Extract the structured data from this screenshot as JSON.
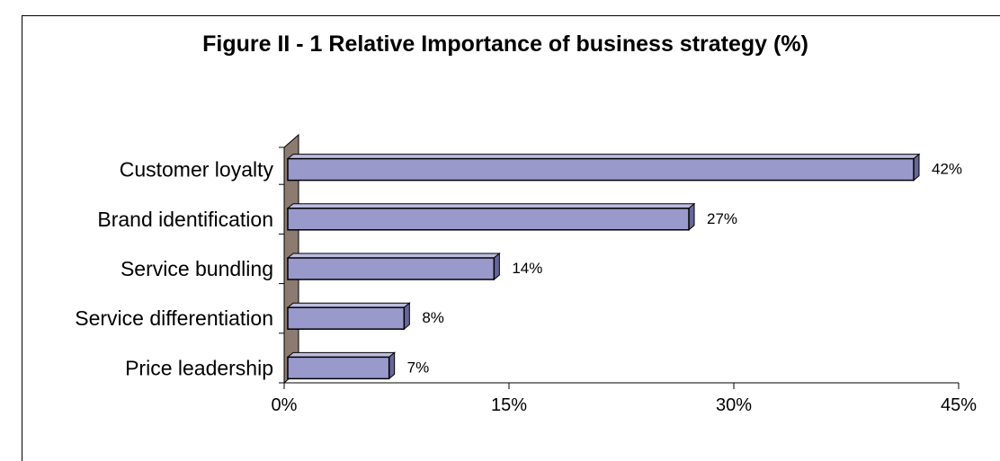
{
  "chart_data": {
    "type": "bar",
    "orientation": "horizontal",
    "title": "Figure II - 1 Relative Importance of business strategy (%)",
    "categories": [
      "Customer loyalty",
      "Brand identification",
      "Service bundling",
      "Service differentiation",
      "Price leadership"
    ],
    "values": [
      42,
      27,
      14,
      8,
      7
    ],
    "data_labels": [
      "42%",
      "27%",
      "14%",
      "8%",
      "7%"
    ],
    "xlabel": "",
    "ylabel": "",
    "xlim": [
      0,
      45
    ],
    "ticks": [
      0,
      15,
      30,
      45
    ],
    "tick_labels": [
      "0%",
      "15%",
      "30%",
      "45%"
    ],
    "grid": false,
    "legend": "none",
    "colors": {
      "bar_face": "#9999cc",
      "bar_side": "#666699",
      "wall": "#8c7b70",
      "axis": "#000000"
    }
  }
}
